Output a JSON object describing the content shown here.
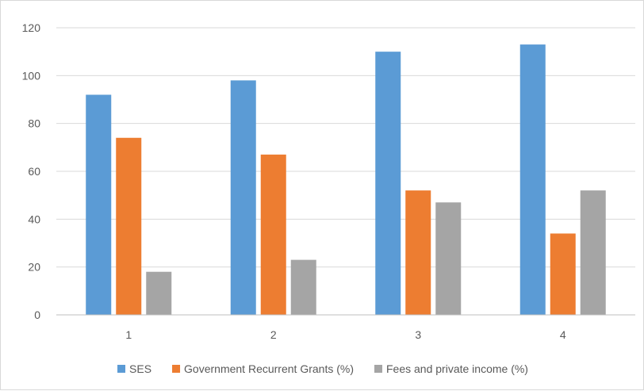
{
  "chart_data": {
    "type": "bar",
    "title": "",
    "xlabel": "",
    "ylabel": "",
    "categories": [
      "1",
      "2",
      "3",
      "4"
    ],
    "series": [
      {
        "name": "SES",
        "color": "#5b9bd5",
        "values": [
          92,
          98,
          110,
          113
        ]
      },
      {
        "name": "Government Recurrent Grants (%)",
        "color": "#ed7d31",
        "values": [
          74,
          67,
          52,
          34
        ]
      },
      {
        "name": "Fees and private income (%)",
        "color": "#a5a5a5",
        "values": [
          18,
          23,
          47,
          52
        ]
      }
    ],
    "ylim": [
      0,
      120
    ],
    "yticks": [
      0,
      20,
      40,
      60,
      80,
      100,
      120
    ],
    "grid": true,
    "legend_position": "bottom"
  }
}
